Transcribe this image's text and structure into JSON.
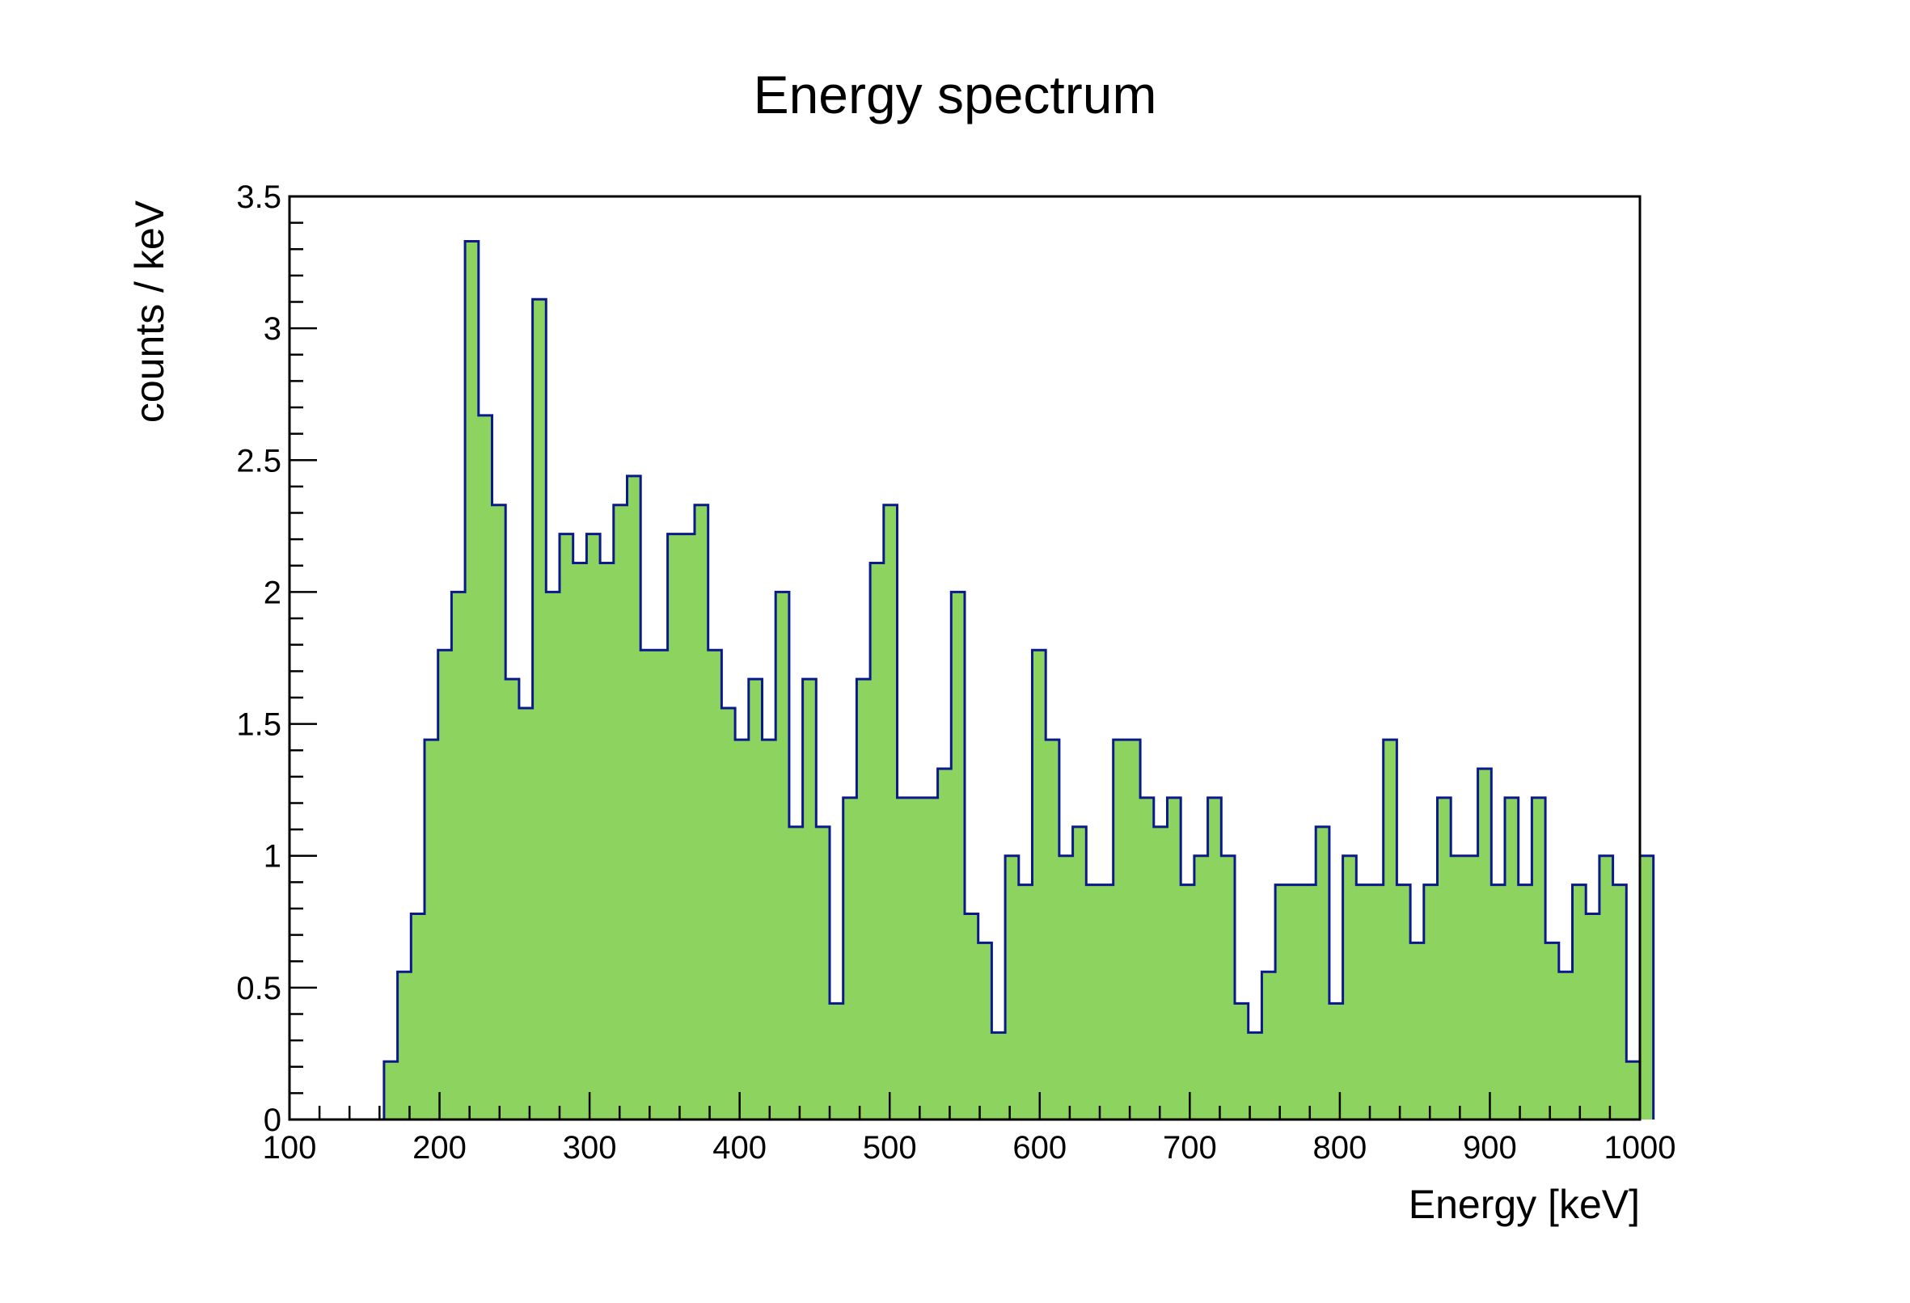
{
  "chart_data": {
    "type": "bar",
    "title": "Energy spectrum",
    "xlabel": "Energy [keV]",
    "ylabel": "counts / keV",
    "xlim": [
      100,
      1000
    ],
    "ylim": [
      0,
      3.5
    ],
    "x_ticks": [
      100,
      200,
      300,
      400,
      500,
      600,
      700,
      800,
      900,
      1000
    ],
    "x_tick_labels": [
      "100",
      "200",
      "300",
      "400",
      "500",
      "600",
      "700",
      "800",
      "900",
      "1000"
    ],
    "y_ticks": [
      0,
      0.5,
      1,
      1.5,
      2,
      2.5,
      3,
      3.5
    ],
    "y_tick_labels": [
      "0",
      "0.5",
      "1",
      "1.5",
      "2",
      "2.5",
      "3",
      "3.5"
    ],
    "bin_width": 9,
    "bin_start": 100,
    "values": [
      0,
      0,
      0,
      0,
      0,
      0,
      0,
      0.22,
      0.56,
      0.78,
      1.44,
      1.78,
      2.0,
      3.33,
      2.67,
      2.33,
      1.67,
      1.56,
      3.11,
      2.0,
      2.22,
      2.11,
      2.22,
      2.11,
      2.33,
      2.44,
      1.78,
      1.78,
      2.22,
      2.22,
      2.33,
      1.78,
      1.56,
      1.44,
      1.67,
      1.44,
      2.0,
      1.11,
      1.67,
      1.11,
      0.44,
      1.22,
      1.67,
      2.11,
      2.33,
      1.22,
      1.22,
      1.22,
      1.33,
      2.0,
      0.78,
      0.67,
      0.33,
      1.0,
      0.89,
      1.78,
      1.44,
      1.0,
      1.11,
      0.89,
      0.89,
      1.44,
      1.44,
      1.22,
      1.11,
      1.22,
      0.89,
      1.0,
      1.22,
      1.0,
      0.44,
      0.33,
      0.56,
      0.89,
      0.89,
      0.89,
      1.11,
      0.44,
      1.0,
      0.89,
      0.89,
      1.44,
      0.89,
      0.67,
      0.89,
      1.22,
      1.0,
      1.0,
      1.33,
      0.89,
      1.22,
      0.89,
      1.22,
      0.67,
      0.56,
      0.89,
      0.78,
      1.0,
      0.89,
      0.22,
      1.0
    ],
    "fill_color": "#8cd35f",
    "line_color": "#0a1a8c",
    "grid": false,
    "legend": false
  }
}
